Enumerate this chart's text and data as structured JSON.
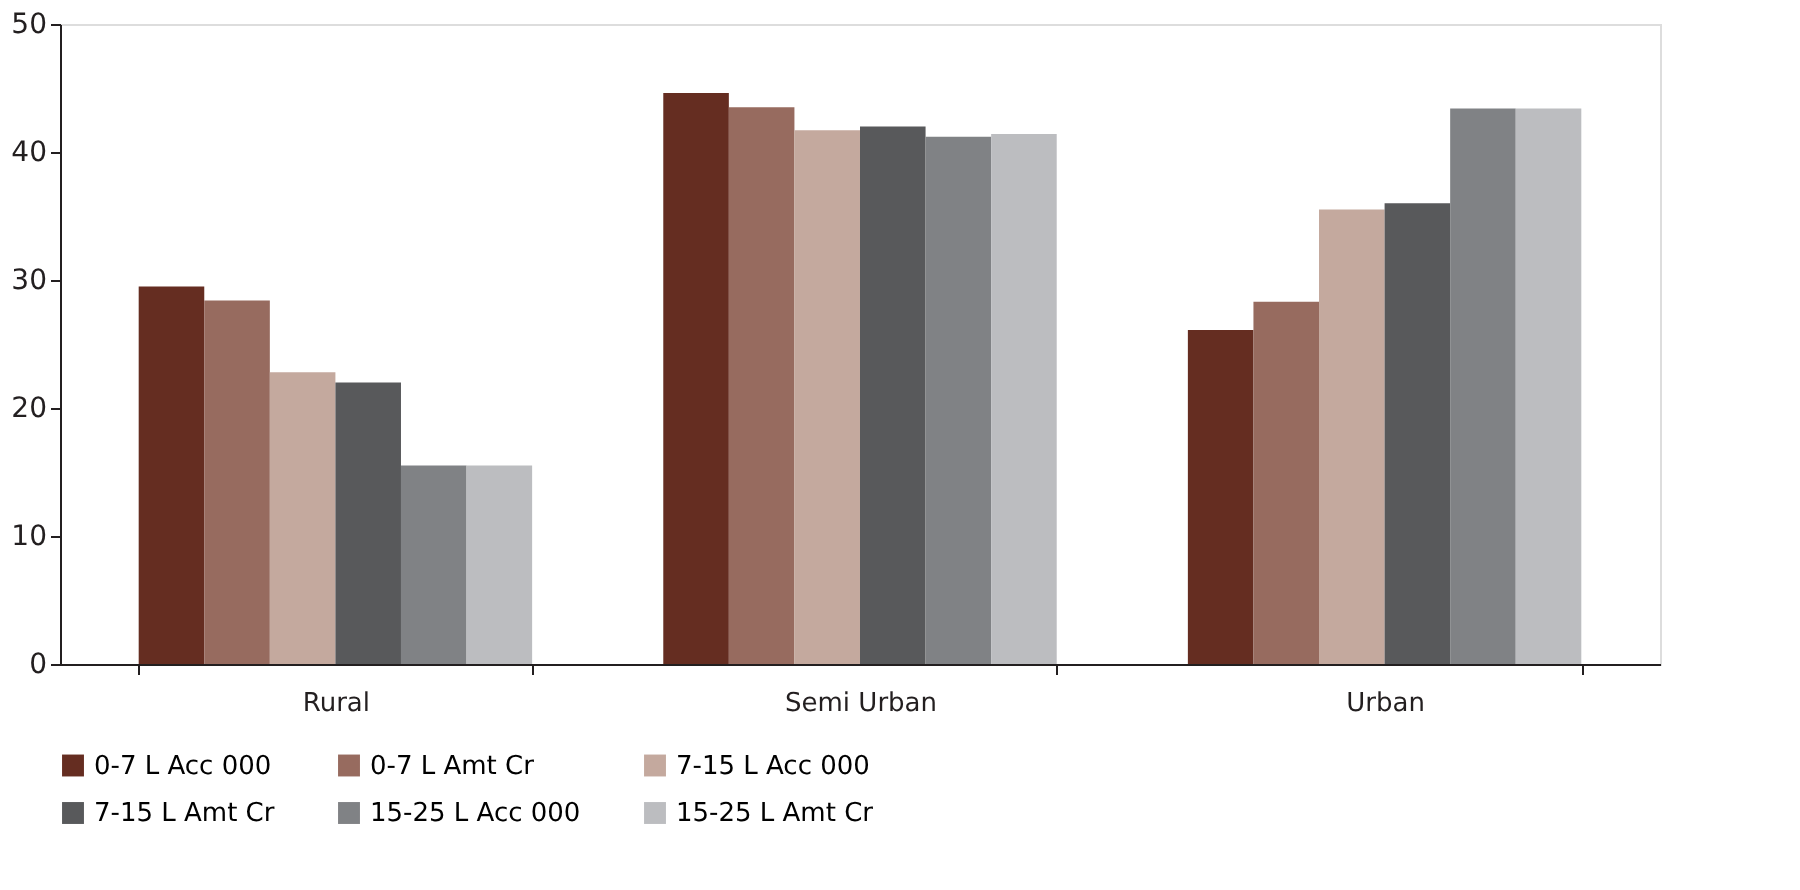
{
  "chart_data": {
    "type": "bar",
    "categories": [
      "Rural",
      "Semi Urban",
      "Urban"
    ],
    "series": [
      {
        "name": "0-7 L Acc 000",
        "color": "#652d21",
        "values": [
          29.5,
          44.6,
          26.1
        ]
      },
      {
        "name": "0-7 L Amt Cr",
        "color": "#976b5f",
        "values": [
          28.4,
          43.5,
          28.3
        ]
      },
      {
        "name": "7-15 L Acc 000",
        "color": "#c4a99e",
        "values": [
          22.8,
          41.7,
          35.5
        ]
      },
      {
        "name": "7-15 L Amt Cr",
        "color": "#58595b",
        "values": [
          22.0,
          42.0,
          36.0
        ]
      },
      {
        "name": "15-25 L Acc 000",
        "color": "#808285",
        "values": [
          15.5,
          41.2,
          43.4
        ]
      },
      {
        "name": "15-25 L Amt Cr",
        "color": "#bcbdc0",
        "values": [
          15.5,
          41.4,
          43.4
        ]
      }
    ],
    "ylim": [
      0,
      50
    ],
    "yticks": [
      0,
      10,
      20,
      30,
      40,
      50
    ],
    "grid": false,
    "legend": "bottom"
  }
}
